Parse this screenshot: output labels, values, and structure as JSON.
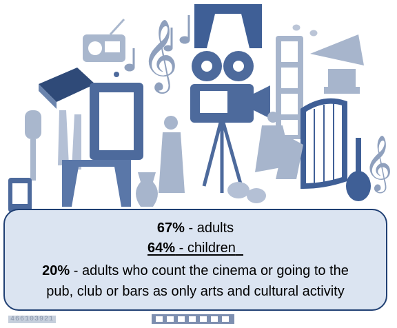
{
  "callout": {
    "line1": {
      "pct": "67%",
      "text": " - adults"
    },
    "line2": {
      "pct": "64%",
      "text": " - children"
    },
    "line3": {
      "pct": "20%",
      "text": " - adults who count the cinema or going to the"
    },
    "line4": "pub, club or bars as only arts and cultural activity"
  },
  "watermark_code": "466103921",
  "colors": {
    "icon": "#9aaac4",
    "icon_dark": "#4d6a9c",
    "callout_bg": "#dbe4f1",
    "callout_border": "#1f3f73"
  },
  "icons": [
    "radio-icon",
    "music-notes-icon",
    "treble-clef-icon",
    "curtain-icon",
    "film-strip-icon",
    "gramophone-icon",
    "book-icon",
    "picture-frame-icon",
    "film-camera-icon",
    "harp-icon",
    "microphone-icon",
    "ballet-shoes-icon",
    "statue-icon",
    "dancers-icon",
    "violin-icon",
    "theatre-masks-icon",
    "vase-icon",
    "mobile-phone-icon"
  ]
}
